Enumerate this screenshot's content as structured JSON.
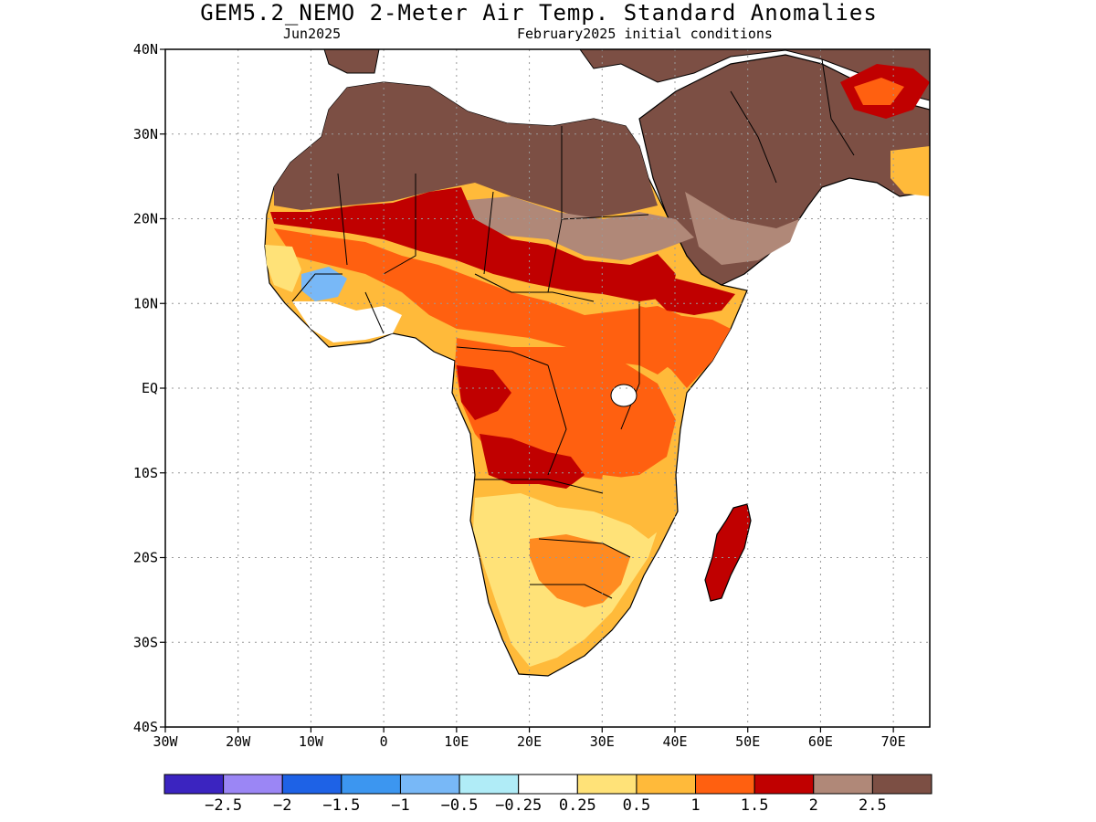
{
  "title": "GEM5.2_NEMO 2-Meter Air Temp. Standard Anomalies",
  "subtitle_left": "Jun2025",
  "subtitle_right": "February2025 initial conditions",
  "map": {
    "lon_range": [
      -30,
      75
    ],
    "lat_range": [
      -40,
      40
    ],
    "lat_ticks": [
      {
        "value": 40,
        "label": "40N"
      },
      {
        "value": 30,
        "label": "30N"
      },
      {
        "value": 20,
        "label": "20N"
      },
      {
        "value": 10,
        "label": "10N"
      },
      {
        "value": 0,
        "label": "EQ"
      },
      {
        "value": -10,
        "label": "10S"
      },
      {
        "value": -20,
        "label": "20S"
      },
      {
        "value": -30,
        "label": "30S"
      },
      {
        "value": -40,
        "label": "40S"
      }
    ],
    "lon_ticks": [
      {
        "value": -30,
        "label": "30W"
      },
      {
        "value": -20,
        "label": "20W"
      },
      {
        "value": -10,
        "label": "10W"
      },
      {
        "value": 0,
        "label": "0"
      },
      {
        "value": 10,
        "label": "10E"
      },
      {
        "value": 20,
        "label": "20E"
      },
      {
        "value": 30,
        "label": "30E"
      },
      {
        "value": 40,
        "label": "40E"
      },
      {
        "value": 50,
        "label": "50E"
      },
      {
        "value": 60,
        "label": "60E"
      },
      {
        "value": 70,
        "label": "70E"
      }
    ],
    "grid": "dotted"
  },
  "colorbar": {
    "colors": [
      "#3b24c0",
      "#9b86f5",
      "#1e62e6",
      "#3c96f0",
      "#78b8f7",
      "#b0ecf7",
      "#ffffff",
      "#ffe278",
      "#ffba3a",
      "#ff6010",
      "#c00000",
      "#b08878",
      "#7c4f44"
    ],
    "labels": [
      "−2.5",
      "−2",
      "−1.5",
      "−1",
      "−0.5",
      "−0.25",
      "0.25",
      "0.5",
      "1",
      "1.5",
      "2",
      "2.5"
    ]
  }
}
